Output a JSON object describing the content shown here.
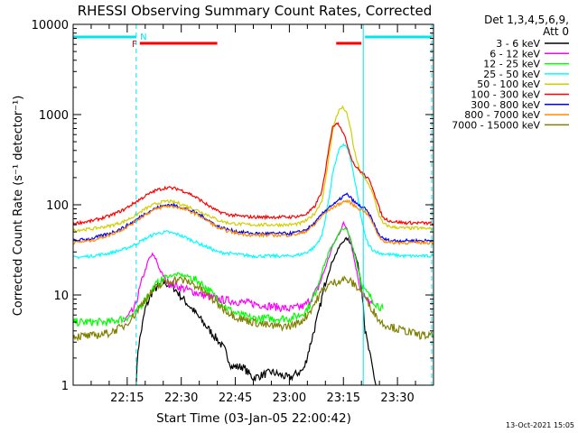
{
  "chart_data": {
    "type": "line",
    "title": "RHESSI Observing Summary Count Rates, Corrected",
    "xlabel": "Start Time (03-Jan-05 22:00:42)",
    "ylabel": "Corrected Count Rate (s⁻¹ detector⁻¹)",
    "yscale": "log",
    "ylim": [
      1,
      10000
    ],
    "xlim_minutes": [
      0,
      100
    ],
    "x_ticks": [
      {
        "label": "22:15",
        "minute": 15
      },
      {
        "label": "22:30",
        "minute": 30
      },
      {
        "label": "22:45",
        "minute": 45
      },
      {
        "label": "23:00",
        "minute": 60
      },
      {
        "label": "23:15",
        "minute": 75
      },
      {
        "label": "23:30",
        "minute": 90
      }
    ],
    "y_ticks": [
      {
        "label": "1",
        "value": 1
      },
      {
        "label": "10",
        "value": 10
      },
      {
        "label": "100",
        "value": 100
      },
      {
        "label": "1000",
        "value": 1000
      },
      {
        "label": "10000",
        "value": 10000
      }
    ],
    "legend_header": [
      "Det 1,3,4,5,6,9,",
      "Att 0"
    ],
    "legend_position": "right",
    "footer_date": "13-Oct-2021 15:05",
    "annotations": [
      {
        "text": "F",
        "minute": 17,
        "color": "#ff0000"
      },
      {
        "text": "N",
        "minute": 19.5,
        "color": "#00e5ee"
      }
    ],
    "night_lines_minutes": [
      0,
      17.5,
      80.5,
      99.5
    ],
    "night_solid_minutes": [
      0,
      80.5
    ],
    "night_bars": [
      {
        "from": 0,
        "to": 17.5
      },
      {
        "from": 81,
        "to": 99.5
      }
    ],
    "flare_bars": [
      {
        "from": 18.5,
        "to": 40
      },
      {
        "from": 73,
        "to": 80
      }
    ],
    "series": [
      {
        "name": "3 - 6 keV",
        "color": "#000000",
        "x": [
          17.5,
          18,
          20,
          22,
          25,
          28,
          30,
          33,
          36,
          40,
          42,
          44,
          47,
          50,
          55,
          60,
          64,
          66,
          68,
          70,
          72,
          74,
          75,
          76,
          77,
          78,
          79,
          80,
          80.5,
          81,
          82,
          83,
          84
        ],
        "y": [
          1.0,
          2.5,
          7,
          11,
          14,
          12,
          9.5,
          7,
          5,
          3.2,
          2.5,
          1.6,
          1.6,
          1.2,
          1.4,
          1.2,
          1.5,
          3,
          6,
          14,
          24,
          35,
          40,
          42,
          38,
          30,
          22,
          13,
          8,
          4,
          2.5,
          1.6,
          1.0
        ]
      },
      {
        "name": "6 - 12 keV",
        "color": "#ff00ff",
        "x": [
          14,
          17,
          19,
          21,
          22,
          23,
          24,
          26,
          28,
          30,
          33,
          36,
          40,
          45,
          50,
          55,
          60,
          64,
          66,
          68,
          70,
          72,
          74,
          75,
          76,
          77,
          78,
          79,
          80,
          81,
          82,
          83
        ],
        "y": [
          5,
          7,
          14,
          25,
          28,
          25,
          19,
          14,
          13,
          12,
          11,
          10,
          9,
          8.5,
          8,
          7.5,
          7,
          7.5,
          9,
          12,
          20,
          35,
          50,
          62,
          55,
          40,
          25,
          16,
          11,
          9,
          8.5,
          8
        ]
      },
      {
        "name": "12 - 25 keV",
        "color": "#00ff00",
        "x": [
          0,
          5,
          10,
          14,
          17,
          20,
          23,
          26,
          29,
          32,
          35,
          38,
          40,
          43,
          46,
          50,
          55,
          60,
          63,
          65,
          67,
          69,
          71,
          73,
          74,
          75,
          76,
          77,
          78,
          79,
          80,
          81,
          82,
          83,
          84,
          86
        ],
        "y": [
          5,
          5,
          5,
          5.5,
          6,
          9,
          13,
          16,
          17,
          16,
          14,
          11,
          9,
          7,
          6,
          5.5,
          5.5,
          5.5,
          6,
          7,
          10,
          18,
          30,
          42,
          50,
          55,
          52,
          42,
          30,
          20,
          14,
          11,
          10,
          9,
          8,
          7
        ]
      },
      {
        "name": "25 - 50 keV",
        "color": "#00ffff",
        "x": [
          0,
          5,
          10,
          14,
          17,
          20,
          23,
          26,
          29,
          32,
          35,
          38,
          40,
          43,
          46,
          50,
          55,
          60,
          63,
          65,
          67,
          69,
          70,
          71,
          72,
          73,
          74,
          75,
          76,
          77,
          78,
          79,
          80,
          81,
          82,
          83,
          85,
          88,
          92,
          96,
          100
        ],
        "y": [
          26,
          27,
          29,
          32,
          36,
          42,
          48,
          50,
          47,
          42,
          37,
          33,
          30,
          29,
          28,
          27,
          27,
          27,
          28,
          30,
          34,
          45,
          70,
          120,
          220,
          320,
          420,
          470,
          430,
          320,
          200,
          120,
          70,
          45,
          36,
          32,
          29,
          28,
          27,
          27,
          27
        ]
      },
      {
        "name": "50 - 100 keV",
        "color": "#d0d000",
        "x": [
          0,
          5,
          10,
          14,
          17,
          20,
          23,
          26,
          29,
          32,
          35,
          38,
          40,
          43,
          46,
          50,
          55,
          60,
          63,
          65,
          67,
          69,
          70,
          71,
          72,
          73,
          74,
          75,
          76,
          77,
          78,
          79,
          80,
          81,
          82,
          83,
          84,
          85,
          86,
          88,
          92,
          96,
          100
        ],
        "y": [
          52,
          54,
          58,
          65,
          75,
          90,
          103,
          110,
          105,
          95,
          85,
          75,
          68,
          63,
          61,
          60,
          60,
          60,
          62,
          68,
          80,
          110,
          180,
          350,
          650,
          950,
          1150,
          1200,
          1000,
          700,
          400,
          280,
          220,
          190,
          170,
          140,
          100,
          75,
          62,
          57,
          55,
          55,
          54
        ]
      },
      {
        "name": "100 - 300 keV",
        "color": "#ff0000",
        "x": [
          0,
          5,
          10,
          14,
          17,
          20,
          23,
          26,
          29,
          32,
          35,
          38,
          40,
          43,
          46,
          50,
          55,
          60,
          63,
          65,
          67,
          69,
          70,
          71,
          72,
          73,
          74,
          75,
          76,
          77,
          78,
          79,
          80,
          81,
          82,
          83,
          84,
          85,
          86,
          88,
          92,
          96,
          100
        ],
        "y": [
          62,
          66,
          75,
          88,
          105,
          125,
          145,
          155,
          150,
          135,
          115,
          95,
          85,
          78,
          75,
          73,
          73,
          73,
          75,
          80,
          95,
          140,
          230,
          450,
          720,
          820,
          760,
          620,
          480,
          350,
          280,
          250,
          230,
          210,
          190,
          160,
          120,
          90,
          72,
          66,
          63,
          63,
          62
        ]
      },
      {
        "name": "300 - 800 keV",
        "color": "#0000ff",
        "x": [
          0,
          5,
          10,
          14,
          17,
          20,
          23,
          26,
          29,
          32,
          35,
          38,
          40,
          43,
          46,
          50,
          55,
          60,
          63,
          65,
          67,
          69,
          71,
          73,
          74,
          75,
          76,
          77,
          78,
          79,
          80,
          81,
          82,
          83,
          84,
          85,
          86,
          88,
          92,
          96,
          100
        ],
        "y": [
          40,
          42,
          48,
          56,
          66,
          80,
          92,
          100,
          97,
          88,
          78,
          66,
          58,
          53,
          50,
          48,
          48,
          48,
          50,
          54,
          62,
          78,
          95,
          105,
          115,
          125,
          130,
          120,
          108,
          100,
          95,
          90,
          80,
          68,
          55,
          46,
          42,
          40,
          40,
          40,
          40
        ]
      },
      {
        "name": "800 - 7000 keV",
        "color": "#ff8c00",
        "x": [
          0,
          5,
          10,
          14,
          17,
          20,
          23,
          26,
          29,
          32,
          35,
          38,
          40,
          43,
          46,
          50,
          55,
          60,
          63,
          65,
          67,
          69,
          71,
          73,
          74,
          75,
          76,
          77,
          78,
          79,
          80,
          81,
          82,
          83,
          84,
          85,
          86,
          88,
          92,
          96,
          100
        ],
        "y": [
          38,
          40,
          46,
          54,
          64,
          78,
          90,
          97,
          94,
          86,
          76,
          64,
          56,
          51,
          48,
          46,
          46,
          46,
          48,
          52,
          60,
          75,
          88,
          98,
          103,
          108,
          110,
          105,
          98,
          92,
          88,
          84,
          76,
          64,
          52,
          44,
          40,
          38,
          38,
          38,
          38
        ]
      },
      {
        "name": "7000 - 15000 keV",
        "color": "#808000",
        "x": [
          0,
          5,
          10,
          14,
          17,
          20,
          23,
          26,
          29,
          32,
          35,
          38,
          40,
          43,
          46,
          50,
          55,
          60,
          63,
          65,
          67,
          69,
          71,
          73,
          75,
          77,
          78,
          79,
          80,
          81,
          82,
          83,
          84,
          85,
          86,
          88,
          90,
          92,
          96,
          100
        ],
        "y": [
          3.5,
          3.5,
          3.8,
          4.5,
          6,
          9,
          12,
          14,
          15,
          14,
          12,
          9.5,
          8,
          6.5,
          5.5,
          5,
          4.5,
          4.5,
          5,
          6,
          8,
          11,
          13,
          14,
          15,
          14,
          13,
          12,
          11,
          9.5,
          8,
          7,
          6,
          5.2,
          4.8,
          4.5,
          4.2,
          4,
          3.6,
          3.5
        ]
      }
    ]
  }
}
